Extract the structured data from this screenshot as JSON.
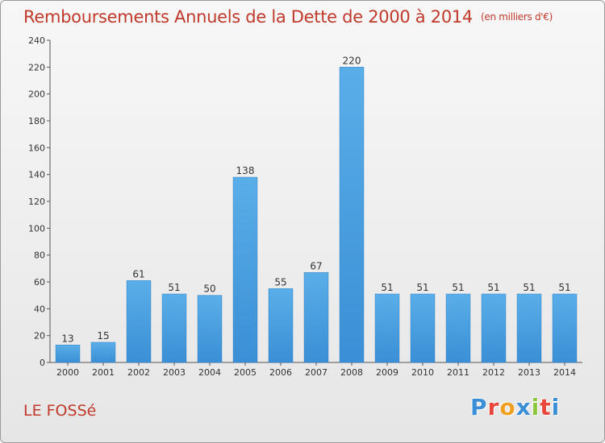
{
  "header": {
    "title": "Remboursements Annuels de la Dette de 2000 à 2014",
    "unit": "(en milliers d'€)"
  },
  "footer": {
    "city": "LE FOSSé",
    "logo_letters": [
      "P",
      "r",
      "o",
      "x",
      "i",
      "t",
      "i"
    ],
    "logo_colors": [
      "#3a8fd6",
      "#e8463a",
      "#f0a020",
      "#3a8fd6",
      "#8cc63f",
      "#e8463a",
      "#3a8fd6"
    ]
  },
  "chart_data": {
    "type": "bar",
    "categories": [
      "2000",
      "2001",
      "2002",
      "2003",
      "2004",
      "2005",
      "2006",
      "2007",
      "2008",
      "2009",
      "2010",
      "2011",
      "2012",
      "2013",
      "2014"
    ],
    "values": [
      13,
      15,
      61,
      51,
      50,
      138,
      55,
      67,
      220,
      51,
      51,
      51,
      51,
      51,
      51
    ],
    "ylim": [
      0,
      240
    ],
    "yticks": [
      0,
      20,
      40,
      60,
      80,
      100,
      120,
      140,
      160,
      180,
      200,
      220,
      240
    ],
    "grid": false,
    "bar_color": "#3a8fd6",
    "bar_color_light": "#5aaee8"
  }
}
